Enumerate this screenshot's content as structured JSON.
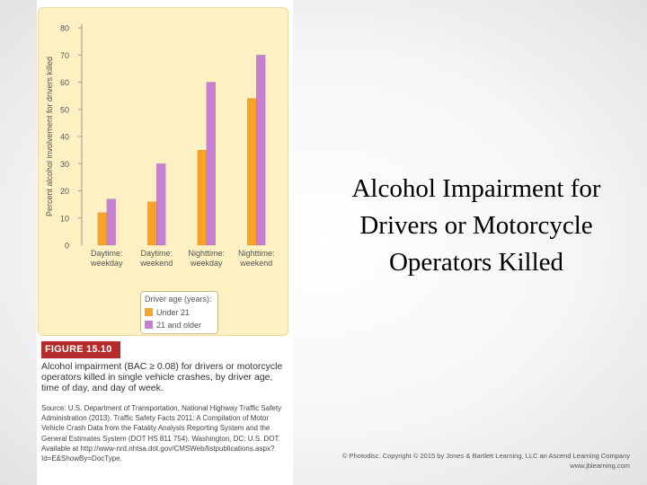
{
  "slide": {
    "title_lines": [
      "Alcohol Impairment for",
      "Drivers or Motorcycle",
      "Operators Killed"
    ],
    "copyright_lines": [
      "© Photodisc. Copyright © 2015 by Jones & Bartlett Learning, LLC an Ascend Learning Company",
      "www.jblearning.com"
    ]
  },
  "figure": {
    "label": "FIGURE 15.10",
    "caption": "Alcohol impairment (BAC ≥ 0.08) for drivers or motorcycle operators killed in single vehicle crashes, by driver age, time of day, and day of week.",
    "source": "Source: U.S. Department of Transportation, National Highway Traffic Safety Administration (2013). Traffic Safety Facts 2011: A Compilation of Motor Vehicle Crash Data from the Fatality Analysis Reporting System and the General Estimates System (DOT HS 811 754). Washington, DC: U.S. DOT. Available at http://www-nrd.nhtsa.dot.gov/CMSWeb/listpublications.aspx?Id=E&ShowBy=DocType."
  },
  "chart_data": {
    "type": "bar",
    "title": "",
    "ylabel": "Percent alcohol involvement for drivers killed",
    "xlabel": "",
    "ylim": [
      0,
      80
    ],
    "yticks": [
      0,
      10,
      20,
      30,
      40,
      50,
      60,
      70,
      80
    ],
    "categories": [
      [
        "Daytime:",
        "weekday"
      ],
      [
        "Daytime:",
        "weekend"
      ],
      [
        "Nighttime:",
        "weekday"
      ],
      [
        "Nighttime:",
        "weekend"
      ]
    ],
    "series": [
      {
        "name": "Under 21",
        "color": "#f7a328",
        "values": [
          12,
          16,
          35,
          54
        ]
      },
      {
        "name": "21 and older",
        "color": "#c87fd2",
        "values": [
          17,
          30,
          60,
          70
        ]
      }
    ],
    "legend": {
      "title": "Driver age (years):",
      "placement": "bottom-center"
    },
    "grid": false
  }
}
